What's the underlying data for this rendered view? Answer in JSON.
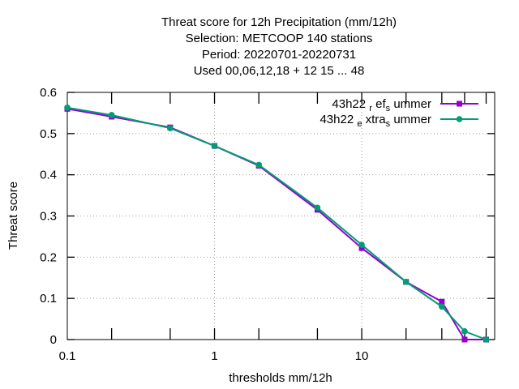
{
  "chart_data": {
    "type": "line",
    "title_lines": [
      "Threat score  for 12h Precipitation (mm/12h)",
      "Selection: METCOOP    140 stations",
      "Period: 20220701-20220731",
      "Used  00,06,12,18  + 12 15 ... 48"
    ],
    "xlabel": "thresholds mm/12h",
    "ylabel": "Threat score",
    "xscale": "log",
    "xlim": [
      0.1,
      80
    ],
    "ylim": [
      0,
      0.6
    ],
    "x_tick_values": [
      0.1,
      1,
      10
    ],
    "x_tick_labels": [
      "0.1",
      "1",
      "10"
    ],
    "y_ticks": [
      0,
      0.1,
      0.2,
      0.3,
      0.4,
      0.5,
      0.6
    ],
    "y_tick_labels": [
      "0",
      "0.1",
      "0.2",
      "0.3",
      "0.4",
      "0.5",
      "0.6"
    ],
    "legend_position": "top-right",
    "x": [
      0.1,
      0.2,
      0.5,
      1,
      2,
      5,
      10,
      20,
      35,
      50,
      70
    ],
    "series": [
      {
        "name": "43h22_ref_summer",
        "legend_main": "43h22",
        "legend_parts": [
          {
            "sub": "r",
            "text": "ef"
          },
          {
            "sub": "s",
            "text": "ummer"
          }
        ],
        "color": "#9400d3",
        "values": [
          0.56,
          0.541,
          0.515,
          0.47,
          0.422,
          0.315,
          0.222,
          0.14,
          0.092,
          0.0,
          0.0
        ]
      },
      {
        "name": "43h22_extra_summer",
        "legend_main": "43h22",
        "legend_parts": [
          {
            "sub": "e",
            "text": "xtra"
          },
          {
            "sub": "s",
            "text": "ummer"
          }
        ],
        "color": "#009e73",
        "values": [
          0.563,
          0.545,
          0.513,
          0.47,
          0.424,
          0.32,
          0.23,
          0.14,
          0.08,
          0.02,
          0.0
        ]
      }
    ]
  }
}
